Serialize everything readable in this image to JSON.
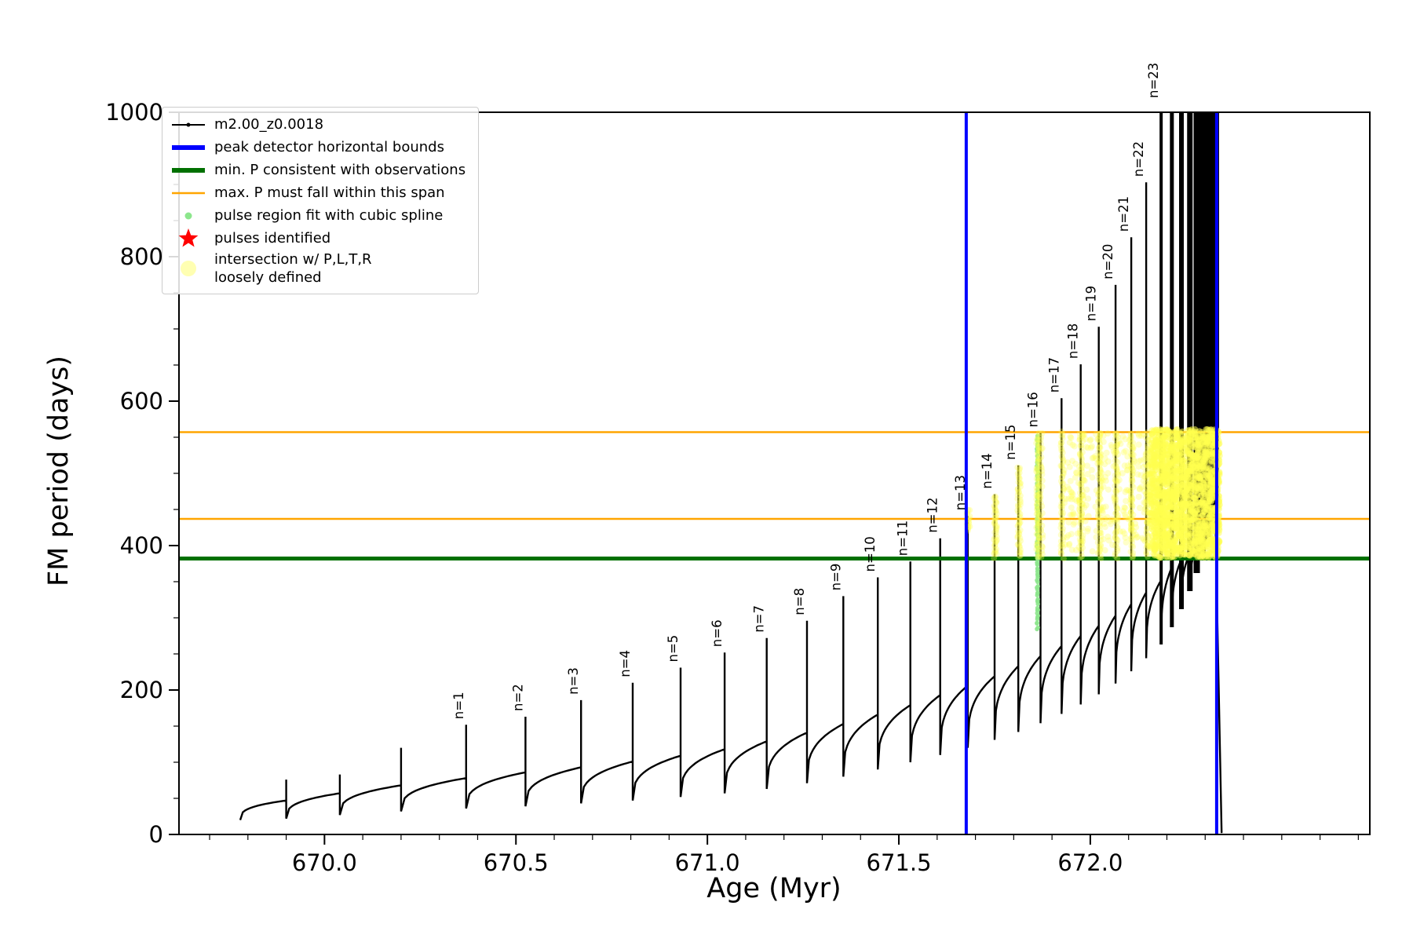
{
  "chart_data": {
    "type": "line",
    "title": "",
    "xlabel": "Age (Myr)",
    "ylabel": "FM period (days)",
    "xlim": [
      669.62,
      672.73
    ],
    "ylim": [
      0,
      1000
    ],
    "x_ticks": [
      670.0,
      670.5,
      671.0,
      671.5,
      672.0
    ],
    "x_tick_labels": [
      "670.0",
      "670.5",
      "671.0",
      "671.5",
      "672.0"
    ],
    "y_ticks": [
      0,
      200,
      400,
      600,
      800,
      1000
    ],
    "x_minor_step": 0.1,
    "y_minor_step": 50,
    "grid": false,
    "legend_position": "upper left",
    "series_name": "m2.00_z0.0018",
    "series_color": "#000000",
    "series_start": {
      "age": 669.78,
      "value": 20
    },
    "series_end": {
      "age": 672.343,
      "value": 2
    },
    "pulses": [
      {
        "label": null,
        "age": 669.9,
        "pre": 47,
        "peak": 76,
        "post": 22
      },
      {
        "label": null,
        "age": 670.04,
        "pre": 57,
        "peak": 83,
        "post": 27
      },
      {
        "label": null,
        "age": 670.2,
        "pre": 68,
        "peak": 120,
        "post": 32
      },
      {
        "label": "n=1",
        "age": 670.37,
        "pre": 78,
        "peak": 152,
        "post": 36
      },
      {
        "label": "n=2",
        "age": 670.525,
        "pre": 86,
        "peak": 163,
        "post": 39
      },
      {
        "label": "n=3",
        "age": 670.67,
        "pre": 93,
        "peak": 186,
        "post": 43
      },
      {
        "label": "n=4",
        "age": 670.805,
        "pre": 101,
        "peak": 210,
        "post": 47
      },
      {
        "label": "n=5",
        "age": 670.93,
        "pre": 109,
        "peak": 231,
        "post": 52
      },
      {
        "label": "n=6",
        "age": 671.045,
        "pre": 118,
        "peak": 252,
        "post": 57
      },
      {
        "label": "n=7",
        "age": 671.155,
        "pre": 129,
        "peak": 272,
        "post": 63
      },
      {
        "label": "n=8",
        "age": 671.26,
        "pre": 141,
        "peak": 296,
        "post": 71
      },
      {
        "label": "n=9",
        "age": 671.355,
        "pre": 153,
        "peak": 330,
        "post": 80
      },
      {
        "label": "n=10",
        "age": 671.445,
        "pre": 166,
        "peak": 356,
        "post": 90
      },
      {
        "label": "n=11",
        "age": 671.53,
        "pre": 179,
        "peak": 378,
        "post": 100
      },
      {
        "label": "n=12",
        "age": 671.608,
        "pre": 193,
        "peak": 410,
        "post": 110
      },
      {
        "label": "n=13",
        "age": 671.68,
        "pre": 206,
        "peak": 441,
        "post": 120
      },
      {
        "label": "n=14",
        "age": 671.75,
        "pre": 219,
        "peak": 471,
        "post": 131
      },
      {
        "label": "n=15",
        "age": 671.812,
        "pre": 233,
        "peak": 511,
        "post": 142
      },
      {
        "label": "n=16",
        "age": 671.87,
        "pre": 247,
        "peak": 556,
        "post": 154
      },
      {
        "label": "n=17",
        "age": 671.925,
        "pre": 261,
        "peak": 604,
        "post": 167
      },
      {
        "label": "n=18",
        "age": 671.975,
        "pre": 275,
        "peak": 651,
        "post": 180
      },
      {
        "label": "n=19",
        "age": 672.022,
        "pre": 289,
        "peak": 703,
        "post": 194
      },
      {
        "label": "n=20",
        "age": 672.066,
        "pre": 303,
        "peak": 761,
        "post": 209
      },
      {
        "label": "n=21",
        "age": 672.107,
        "pre": 319,
        "peak": 827,
        "post": 226
      },
      {
        "label": "n=22",
        "age": 672.146,
        "pre": 335,
        "peak": 903,
        "post": 244
      },
      {
        "label": "n=23",
        "age": 672.185,
        "pre": 352,
        "peak": 1012,
        "post": 263,
        "w": 4
      },
      {
        "label": null,
        "age": 672.213,
        "pre": 370,
        "peak": 1012,
        "post": 287,
        "w": 5
      },
      {
        "label": null,
        "age": 672.238,
        "pre": 381,
        "peak": 1012,
        "post": 312,
        "w": 6
      },
      {
        "label": null,
        "age": 672.26,
        "pre": 389,
        "peak": 1012,
        "post": 337,
        "w": 7
      },
      {
        "label": null,
        "age": 672.278,
        "pre": 396,
        "peak": 1012,
        "post": 362,
        "w": 8
      },
      {
        "label": null,
        "age": 672.293,
        "pre": 402,
        "peak": 1012,
        "post": 387,
        "w": 8
      },
      {
        "label": null,
        "age": 672.306,
        "pre": 412,
        "peak": 1012,
        "post": 412,
        "w": 9
      },
      {
        "label": null,
        "age": 672.317,
        "pre": 432,
        "peak": 1012,
        "post": 435,
        "w": 10
      },
      {
        "label": null,
        "age": 672.326,
        "pre": 468,
        "peak": 1012,
        "post": 452,
        "w": 10
      }
    ],
    "hlines": [
      {
        "name": "min-p-consistent-line",
        "y": 382,
        "color": "#007000",
        "width": 5
      },
      {
        "name": "max-p-span-lower-line",
        "y": 437,
        "color": "#ffa500",
        "width": 2.5
      },
      {
        "name": "max-p-span-upper-line",
        "y": 557,
        "color": "#ffa500",
        "width": 2.5
      }
    ],
    "vlines": [
      {
        "name": "peak-detector-left-bound",
        "x": 671.676,
        "color": "#0000ff",
        "width": 4
      },
      {
        "name": "peak-detector-right-bound",
        "x": 672.33,
        "color": "#0000ff",
        "width": 4
      }
    ],
    "spline_fit_points": {
      "x": 671.862,
      "y_min": 285,
      "y_max": 553,
      "count": 90,
      "color": "#8ce68c"
    },
    "yellow_scatter": {
      "color": "#ffff4d",
      "alpha": 0.3,
      "strips": [
        {
          "x": 671.682,
          "y0": 420,
          "y1": 449,
          "count": 16
        },
        {
          "x": 671.752,
          "y0": 384,
          "y1": 469,
          "count": 40
        },
        {
          "x": 671.814,
          "y0": 384,
          "y1": 509,
          "count": 52
        },
        {
          "x": 671.863,
          "y0": 384,
          "y1": 554,
          "count": 64
        },
        {
          "x": 671.872,
          "y0": 384,
          "y1": 554,
          "count": 40
        },
        {
          "x": 671.927,
          "y0": 384,
          "y1": 556,
          "count": 56
        },
        {
          "x": 671.977,
          "y0": 384,
          "y1": 556,
          "count": 56
        },
        {
          "x": 672.024,
          "y0": 384,
          "y1": 556,
          "count": 56
        },
        {
          "x": 672.068,
          "y0": 384,
          "y1": 556,
          "count": 56
        },
        {
          "x": 672.109,
          "y0": 384,
          "y1": 556,
          "count": 56
        },
        {
          "x": 672.148,
          "y0": 386,
          "y1": 556,
          "count": 56
        },
        {
          "x": 672.187,
          "y0": 390,
          "y1": 556,
          "count": 56
        }
      ],
      "cloud": {
        "x_min": 671.93,
        "x_max": 672.17,
        "y_min": 390,
        "y_max": 556,
        "count": 260
      },
      "blob": {
        "x_min": 672.155,
        "x_max": 672.338,
        "y_min": 383,
        "y_max": 561,
        "count": 1700
      }
    },
    "legend": [
      {
        "glyph": "line-dot",
        "color": "#000000",
        "label": "m2.00_z0.0018"
      },
      {
        "glyph": "thick-line",
        "color": "#0000ff",
        "label": "peak detector horizontal bounds"
      },
      {
        "glyph": "thick-line",
        "color": "#007000",
        "label": "min. P consistent with observations"
      },
      {
        "glyph": "line",
        "color": "#ffa500",
        "label": "max. P must fall within this span"
      },
      {
        "glyph": "dot-small",
        "color": "#8ce68c",
        "label": "pulse region fit with cubic spline"
      },
      {
        "glyph": "star",
        "color": "#ff0000",
        "label": "pulses identified"
      },
      {
        "glyph": "dot-large",
        "color": "#ffffae",
        "label": "intersection w/ P,L,T,R",
        "label2": "loosely defined"
      }
    ]
  }
}
